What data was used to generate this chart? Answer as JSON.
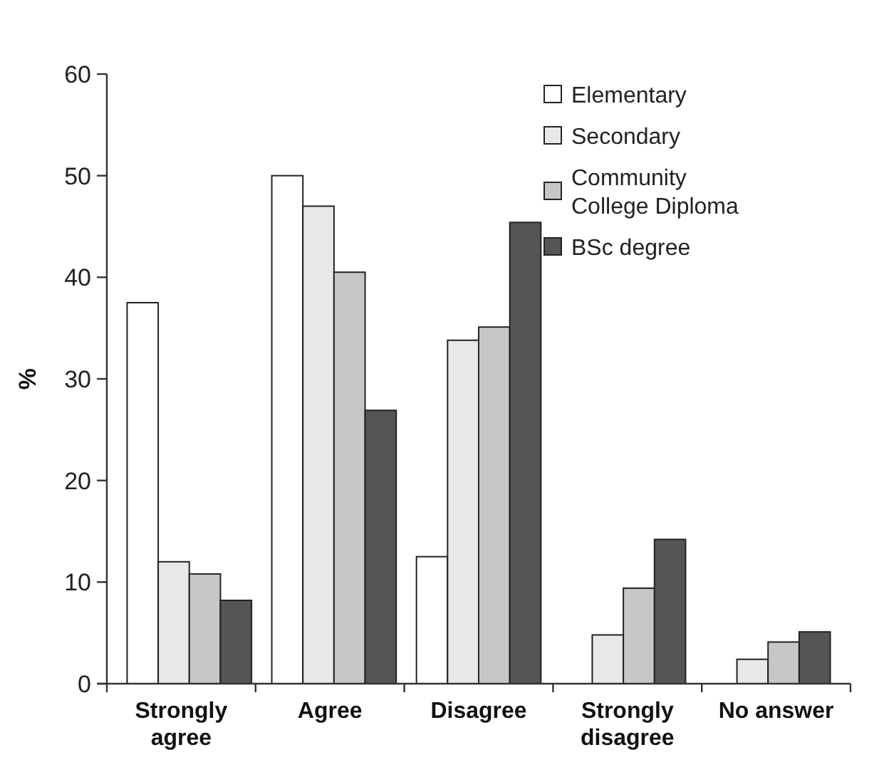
{
  "chart_data": {
    "type": "bar",
    "ylabel": "%",
    "categories": [
      "Strongly agree",
      "Agree",
      "Disagree",
      "Strongly disagree",
      "No answer"
    ],
    "series": [
      {
        "name": "Elementary",
        "color": "#ffffff",
        "values": [
          37.5,
          50,
          12.5,
          0,
          0
        ]
      },
      {
        "name": "Secondary",
        "color": "#e8e8e8",
        "values": [
          12,
          47,
          33.8,
          4.8,
          2.4
        ]
      },
      {
        "name": "Community College Diploma",
        "color": "#c6c7c9",
        "values": [
          10.8,
          40.5,
          35.1,
          9.4,
          4.1
        ]
      },
      {
        "name": "BSc degree",
        "color": "#545557",
        "values": [
          8.2,
          26.9,
          45.4,
          14.2,
          5.1
        ]
      }
    ],
    "ylim": [
      0,
      60
    ],
    "yticks": [
      0,
      10,
      20,
      30,
      40,
      50,
      60
    ],
    "grid": false,
    "legend": "top right"
  }
}
